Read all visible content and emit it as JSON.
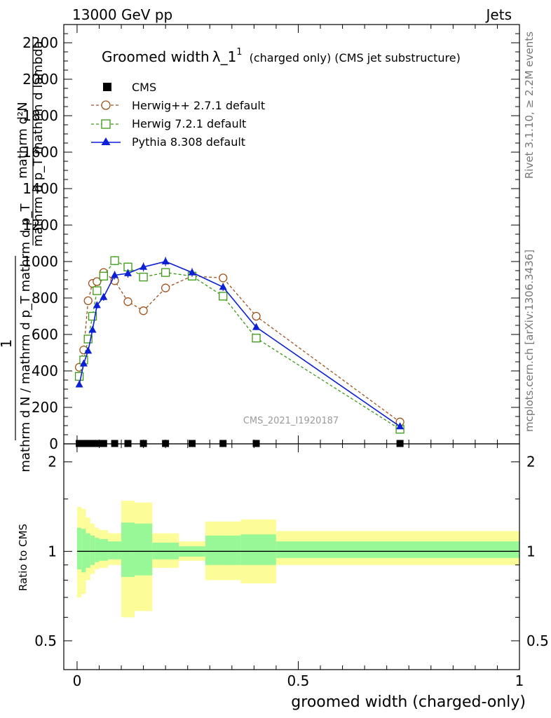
{
  "header": {
    "energy_label": "13000 GeV pp",
    "process_label": "Jets",
    "side_top": "Rivet 3.1.10, ≥ 2.2M events",
    "side_bottom": "mcplots.cern.ch [arXiv:1306.3436]"
  },
  "plot": {
    "title": "Groomed width",
    "title_symbol": "λ_1",
    "title_sup": "1",
    "title_suffix": "(charged only) (CMS jet substructure)",
    "watermark": "CMS_2021_I1920187",
    "ylabel_top_num": "mathrm d²N",
    "ylabel_top_den": "mathrm d p_T mathrm d lambda",
    "ylabel_one": "1",
    "ylabel_bottom_den": "mathrm d N / mathrm d p_T mathrm d p_T",
    "ratio_ylabel": "Ratio to CMS",
    "xlabel": "groomed width (charged-only)"
  },
  "legend": {
    "cms": "CMS",
    "herwigpp": "Herwig++ 2.7.1 default",
    "herwig7": "Herwig 7.2.1 default",
    "pythia": "Pythia 8.308 default"
  },
  "colors": {
    "cms": "#000000",
    "herwigpp": "#a0521d",
    "herwig7": "#3a9a14",
    "pythia": "#0a1fd6",
    "band_inner": "#98f898",
    "band_outer": "#fcfc98"
  },
  "chart_data": {
    "type": "line",
    "x_ticks": [
      "0",
      "0.5",
      "1"
    ],
    "y_ticks": [
      "0",
      "200",
      "400",
      "600",
      "800",
      "1000",
      "1200",
      "1400",
      "1600",
      "1800",
      "2000",
      "2200"
    ],
    "ratio_ticks": [
      "0.5",
      "1",
      "2"
    ],
    "xlim": [
      -0.03,
      1.0
    ],
    "ylim": [
      0,
      2300
    ],
    "ratio_ylim": [
      0.4,
      2.3
    ],
    "cms": {
      "x": [
        0.005,
        0.015,
        0.025,
        0.035,
        0.045,
        0.06,
        0.085,
        0.115,
        0.15,
        0.2,
        0.26,
        0.33,
        0.405,
        0.73
      ],
      "y": [
        2,
        2,
        2,
        2,
        2,
        2,
        2,
        2,
        2,
        2,
        2,
        2,
        2,
        2
      ]
    },
    "series": [
      {
        "name": "Herwig++ 2.7.1 default",
        "key": "herwigpp",
        "x": [
          0.005,
          0.015,
          0.025,
          0.035,
          0.045,
          0.06,
          0.085,
          0.115,
          0.15,
          0.2,
          0.26,
          0.33,
          0.405,
          0.73
        ],
        "y": [
          420,
          515,
          785,
          880,
          890,
          940,
          895,
          780,
          730,
          855,
          920,
          910,
          700,
          120
        ]
      },
      {
        "name": "Herwig 7.2.1 default",
        "key": "herwig7",
        "x": [
          0.005,
          0.015,
          0.025,
          0.035,
          0.045,
          0.06,
          0.085,
          0.115,
          0.15,
          0.2,
          0.26,
          0.33,
          0.405,
          0.73
        ],
        "y": [
          370,
          460,
          575,
          700,
          840,
          920,
          1005,
          970,
          915,
          940,
          920,
          810,
          580,
          80
        ]
      },
      {
        "name": "Pythia 8.308 default",
        "key": "pythia",
        "x": [
          0.005,
          0.015,
          0.025,
          0.035,
          0.045,
          0.06,
          0.085,
          0.115,
          0.15,
          0.2,
          0.26,
          0.33,
          0.405,
          0.73
        ],
        "y": [
          325,
          440,
          510,
          625,
          760,
          805,
          925,
          935,
          970,
          1000,
          940,
          860,
          640,
          95
        ]
      }
    ],
    "ratio_bands": [
      {
        "x0": 0.0,
        "x1": 0.01,
        "inner": [
          0.87,
          1.2
        ],
        "outer": [
          0.7,
          1.41
        ]
      },
      {
        "x0": 0.01,
        "x1": 0.02,
        "inner": [
          0.85,
          1.19
        ],
        "outer": [
          0.72,
          1.39
        ]
      },
      {
        "x0": 0.02,
        "x1": 0.03,
        "inner": [
          0.88,
          1.15
        ],
        "outer": [
          0.8,
          1.3
        ]
      },
      {
        "x0": 0.03,
        "x1": 0.04,
        "inner": [
          0.9,
          1.13
        ],
        "outer": [
          0.84,
          1.24
        ]
      },
      {
        "x0": 0.04,
        "x1": 0.05,
        "inner": [
          0.92,
          1.11
        ],
        "outer": [
          0.87,
          1.2
        ]
      },
      {
        "x0": 0.05,
        "x1": 0.07,
        "inner": [
          0.93,
          1.1
        ],
        "outer": [
          0.88,
          1.18
        ]
      },
      {
        "x0": 0.07,
        "x1": 0.1,
        "inner": [
          0.94,
          1.08
        ],
        "outer": [
          0.9,
          1.15
        ]
      },
      {
        "x0": 0.1,
        "x1": 0.13,
        "inner": [
          0.82,
          1.25
        ],
        "outer": [
          0.6,
          1.48
        ]
      },
      {
        "x0": 0.13,
        "x1": 0.17,
        "inner": [
          0.83,
          1.24
        ],
        "outer": [
          0.63,
          1.46
        ]
      },
      {
        "x0": 0.17,
        "x1": 0.23,
        "inner": [
          0.94,
          1.07
        ],
        "outer": [
          0.88,
          1.15
        ]
      },
      {
        "x0": 0.23,
        "x1": 0.29,
        "inner": [
          0.96,
          1.04
        ],
        "outer": [
          0.93,
          1.08
        ]
      },
      {
        "x0": 0.29,
        "x1": 0.37,
        "inner": [
          0.9,
          1.13
        ],
        "outer": [
          0.8,
          1.26
        ]
      },
      {
        "x0": 0.37,
        "x1": 0.45,
        "inner": [
          0.9,
          1.14
        ],
        "outer": [
          0.78,
          1.28
        ]
      },
      {
        "x0": 0.45,
        "x1": 1.0,
        "inner": [
          0.95,
          1.08
        ],
        "outer": [
          0.9,
          1.17
        ]
      }
    ]
  }
}
